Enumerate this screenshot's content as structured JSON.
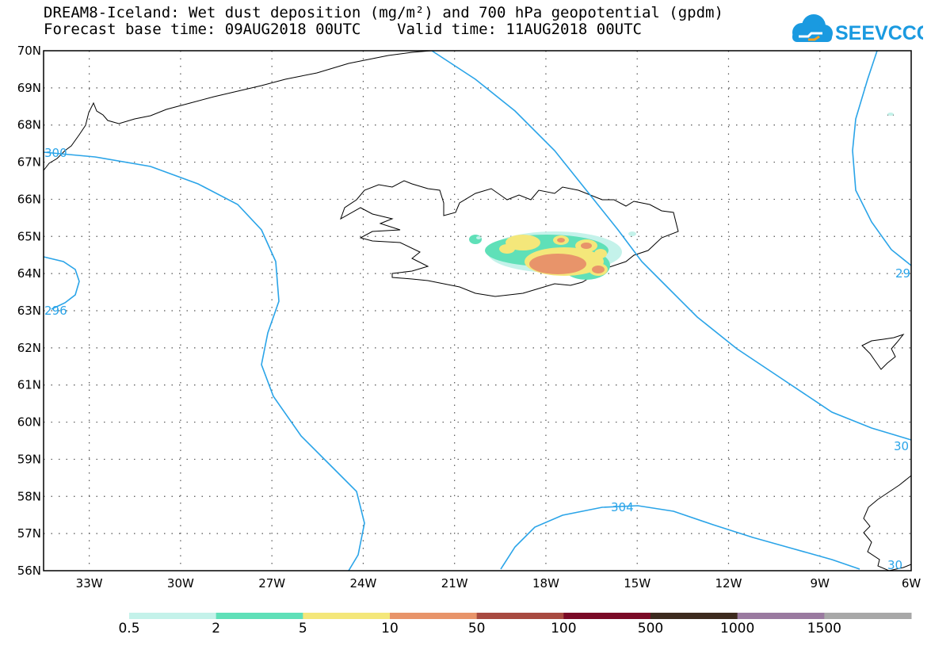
{
  "header": {
    "title_line1": "DREAM8-Iceland: Wet dust deposition (mg/m²) and 700 hPa geopotential (gpdm)",
    "title_line2": "Forecast base time: 09AUG2018 00UTC    Valid time: 11AUG2018 00UTC",
    "logo_text": "SEEVCCC"
  },
  "map": {
    "lat_range": [
      56,
      70
    ],
    "lon_range": [
      -34.5,
      -6
    ],
    "lat_labels": [
      "70N",
      "69N",
      "68N",
      "67N",
      "66N",
      "65N",
      "64N",
      "63N",
      "62N",
      "61N",
      "60N",
      "59N",
      "58N",
      "57N",
      "56N"
    ],
    "lon_labels": [
      "33W",
      "30W",
      "27W",
      "24W",
      "21W",
      "18W",
      "15W",
      "12W",
      "9W",
      "6W"
    ],
    "contour_labels": [
      "300",
      "296",
      "304",
      "29",
      "30",
      "30"
    ],
    "contour_color": "#2aa4e8"
  },
  "colorbar": {
    "ticks": [
      "0.5",
      "2",
      "5",
      "10",
      "50",
      "100",
      "500",
      "1000",
      "1500"
    ],
    "colors": [
      "#c4f2ea",
      "#5fe0b8",
      "#f4e77a",
      "#e8946a",
      "#a84a40",
      "#7a0a26",
      "#3c2a1e",
      "#9a7aa0",
      "#a8a8a8"
    ]
  }
}
